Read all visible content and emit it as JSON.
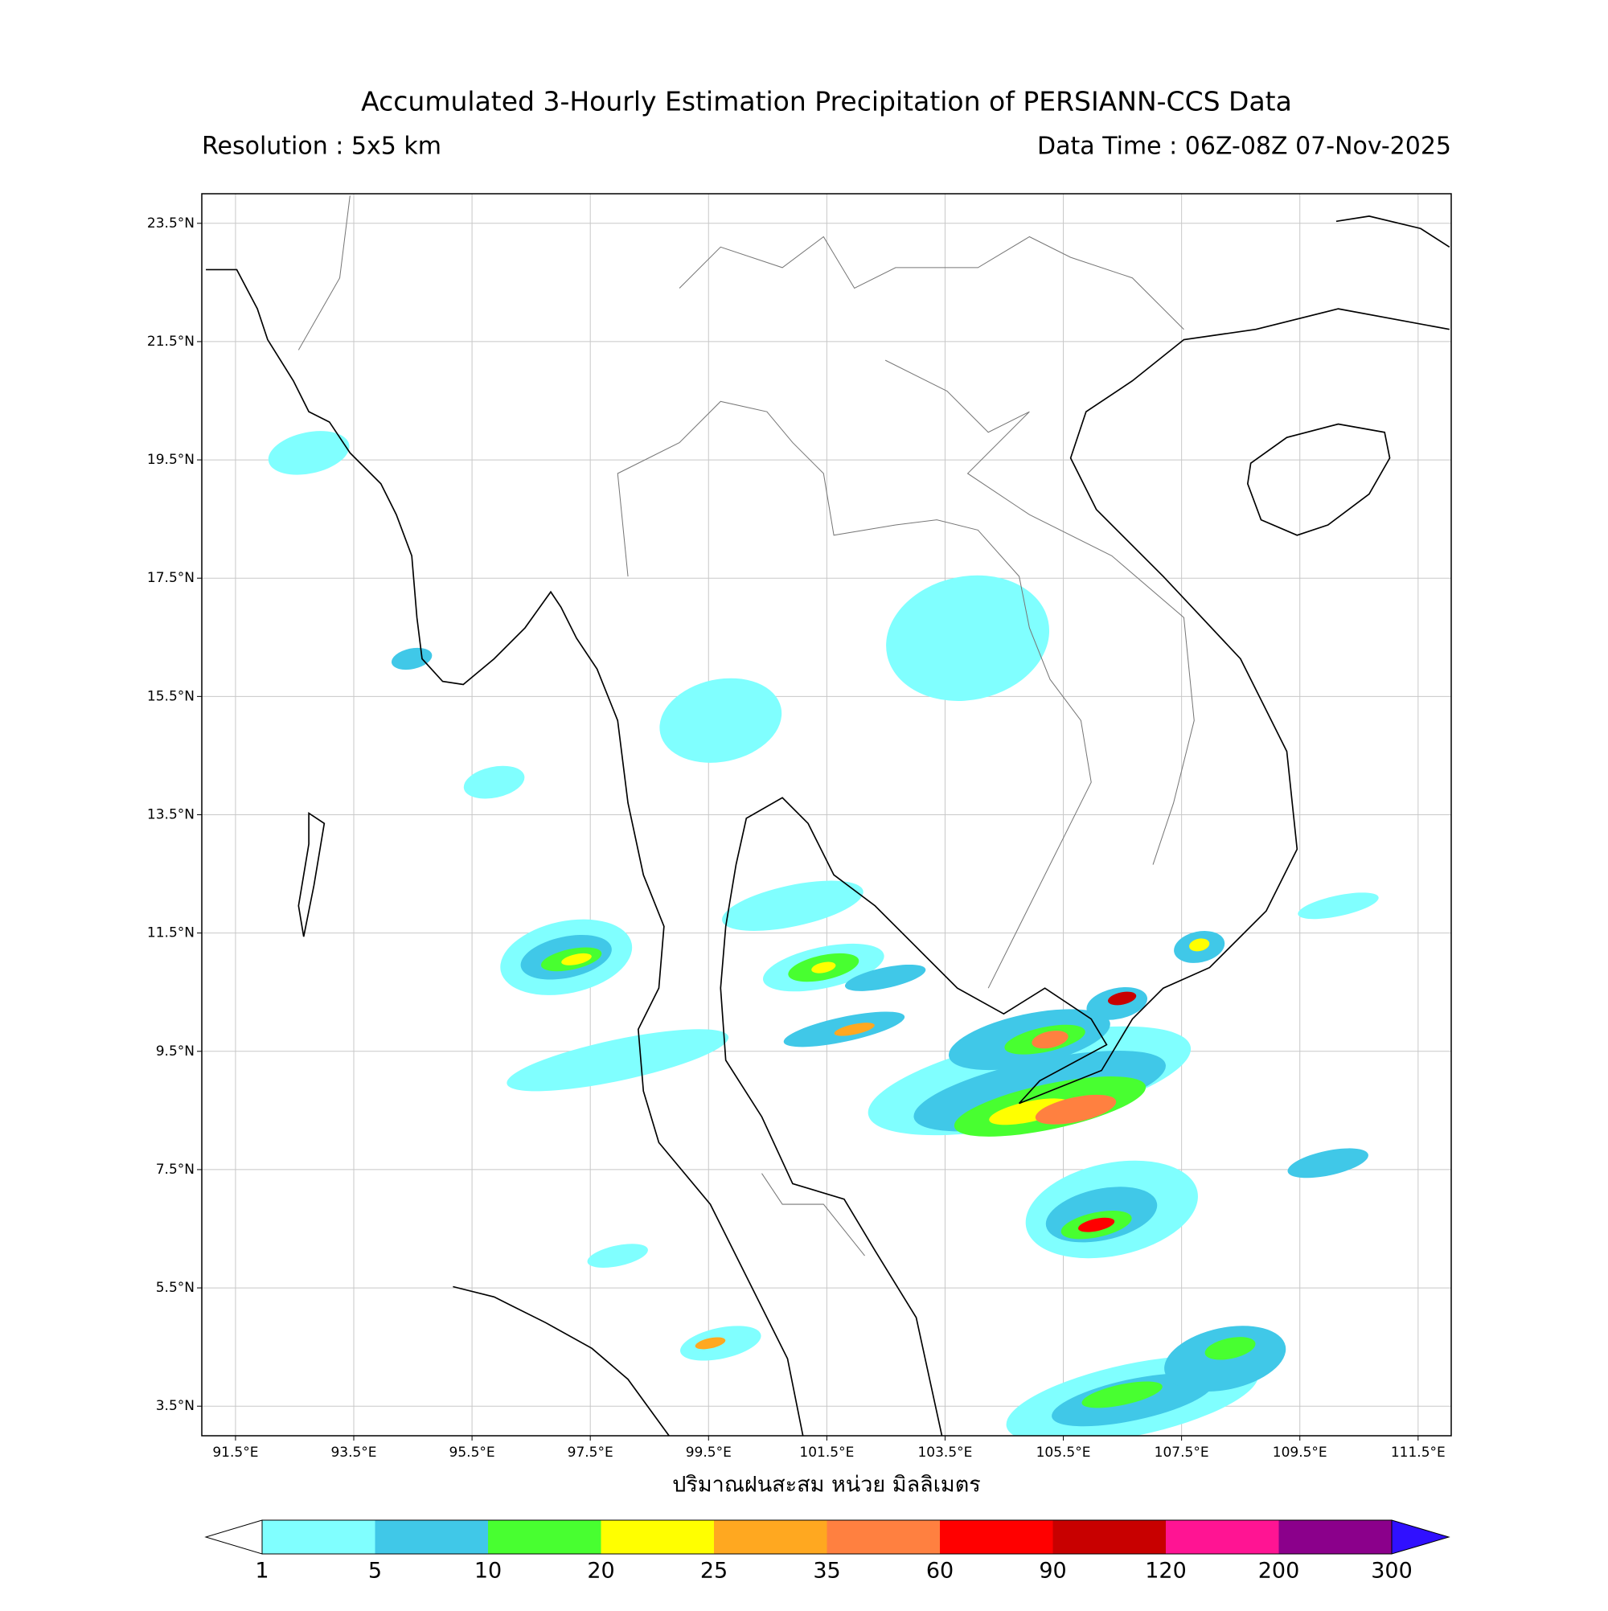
{
  "header": {
    "title": "Accumulated 3-Hourly Estimation Precipitation of PERSIANN-CCS Data",
    "resolution": "Resolution : 5x5 km",
    "data_time": "Data Time : 06Z-08Z 07-Nov-2025"
  },
  "map": {
    "xlim": [
      90.93,
      112.06
    ],
    "ylim": [
      3.0,
      24.0
    ],
    "xticks": [
      {
        "value": 91.5,
        "label": "91.5°E"
      },
      {
        "value": 93.5,
        "label": "93.5°E"
      },
      {
        "value": 95.5,
        "label": "95.5°E"
      },
      {
        "value": 97.5,
        "label": "97.5°E"
      },
      {
        "value": 99.5,
        "label": "99.5°E"
      },
      {
        "value": 101.5,
        "label": "101.5°E"
      },
      {
        "value": 103.5,
        "label": "103.5°E"
      },
      {
        "value": 105.5,
        "label": "105.5°E"
      },
      {
        "value": 107.5,
        "label": "107.5°E"
      },
      {
        "value": 109.5,
        "label": "109.5°E"
      },
      {
        "value": 111.5,
        "label": "111.5°E"
      }
    ],
    "yticks": [
      {
        "value": 3.5,
        "label": "3.5°N"
      },
      {
        "value": 5.5,
        "label": "5.5°N"
      },
      {
        "value": 7.5,
        "label": "7.5°N"
      },
      {
        "value": 9.5,
        "label": "9.5°N"
      },
      {
        "value": 11.5,
        "label": "11.5°N"
      },
      {
        "value": 13.5,
        "label": "13.5°N"
      },
      {
        "value": 15.5,
        "label": "15.5°N"
      },
      {
        "value": 17.5,
        "label": "17.5°N"
      },
      {
        "value": 19.5,
        "label": "19.5°N"
      },
      {
        "value": 21.5,
        "label": "21.5°N"
      },
      {
        "value": 23.5,
        "label": "23.5°N"
      }
    ],
    "x_label": "ปริมาณฝนสะสม หน่วย มิลลิเมตร"
  },
  "colorbar": {
    "levels": [
      1,
      5,
      10,
      20,
      25,
      35,
      60,
      90,
      120,
      200,
      300
    ],
    "colors": [
      "#80ffff",
      "#40c8e8",
      "#48ff30",
      "#ffff00",
      "#ffa820",
      "#ff8040",
      "#ff0000",
      "#c80000",
      "#ff1493",
      "#8b008b"
    ],
    "under_color": "#ffffff",
    "over_color": "#3010ff"
  }
}
